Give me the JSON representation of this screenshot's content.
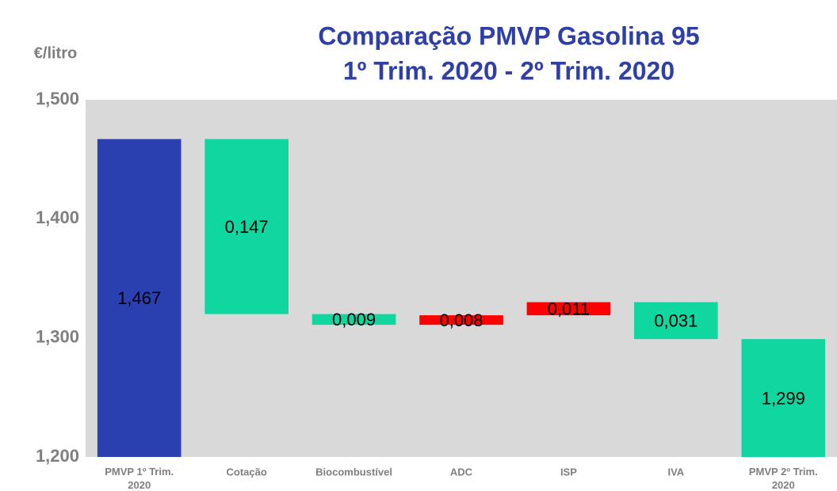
{
  "chart_data": {
    "type": "waterfall",
    "title": [
      "Comparação PMVP Gasolina 95",
      "1º Trim. 2020 - 2º Trim. 2020"
    ],
    "y_axis_label": "€/litro",
    "categories": [
      "PMVP 1º Trim. 2020",
      "Cotação",
      "Biocombustível",
      "ADC",
      "ISP",
      "IVA",
      "PMVP 2º Trim. 2020"
    ],
    "measure": [
      "total",
      "relative",
      "relative",
      "relative",
      "relative",
      "relative",
      "total"
    ],
    "values": [
      1.467,
      -0.147,
      -0.009,
      0.008,
      0.011,
      -0.031,
      1.299
    ],
    "value_labels": [
      "1,467",
      "0,147",
      "0,009",
      "0,008",
      "0,011",
      "0,031",
      "1,299"
    ],
    "colors": [
      "#2a3fb0",
      "#10d6a0",
      "#10d6a0",
      "#ff0000",
      "#ff0000",
      "#10d6a0",
      "#10d6a0"
    ],
    "ylim": [
      1.2,
      1.5
    ],
    "yticks": [
      {
        "value": 1.2,
        "label": "1,200"
      },
      {
        "value": 1.3,
        "label": "1,300"
      },
      {
        "value": 1.4,
        "label": "1,400"
      },
      {
        "value": 1.5,
        "label": "1,500"
      }
    ],
    "plot_background": "#d9d9d9"
  }
}
